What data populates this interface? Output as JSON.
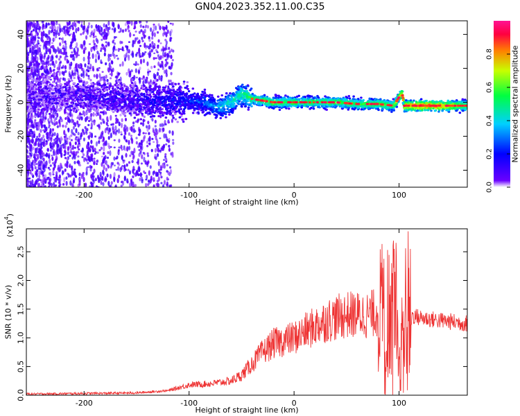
{
  "title": "GN04.2023.352.11.00.C35",
  "chart_data": [
    {
      "type": "heatmap",
      "title": "GN04.2023.352.11.00.C35",
      "xlabel": "Height of straight line (km)",
      "ylabel": "Frequency (Hz)",
      "xlim": [
        -255,
        165
      ],
      "ylim": [
        -50,
        48
      ],
      "xticks": [
        -200,
        -100,
        0,
        100
      ],
      "yticks": [
        -40,
        -20,
        0,
        20,
        40
      ],
      "colorbar": {
        "label": "Normalized spectral amplitude",
        "range": [
          0.0,
          1.0
        ],
        "ticks": [
          "0.0",
          "0.2",
          "0.4",
          "0.6",
          "0.8"
        ],
        "colors": [
          "#ffffff",
          "#6a00ff",
          "#0000ff",
          "#00d0ff",
          "#00ff40",
          "#c8ff00",
          "#ff8000",
          "#ff0040",
          "#ff1493"
        ]
      },
      "ridge": {
        "x": [
          -255,
          -200,
          -150,
          -100,
          -80,
          -70,
          -60,
          -50,
          -40,
          -30,
          -20,
          -10,
          0,
          20,
          40,
          60,
          80,
          95,
          100,
          103,
          105,
          120,
          140,
          165
        ],
        "y": [
          3,
          4,
          1,
          1,
          -1,
          -3,
          0,
          5,
          2,
          1,
          0,
          0,
          0,
          0,
          0,
          -1,
          -1,
          -2,
          3,
          5,
          -2,
          -2,
          -2,
          -2
        ],
        "amplitude": [
          0.05,
          0.08,
          0.12,
          0.2,
          0.3,
          0.4,
          0.45,
          0.5,
          0.55,
          0.6,
          0.65,
          0.6,
          0.6,
          0.6,
          0.6,
          0.6,
          0.6,
          0.6,
          0.7,
          0.8,
          0.85,
          0.9,
          0.85,
          0.6
        ]
      }
    },
    {
      "type": "line",
      "xlabel": "Height of straight line (km)",
      "ylabel": "SNR (10 * v/v)",
      "multiplier": "(x10",
      "multiplier_exp": "4",
      "multiplier_close": ")",
      "xlim": [
        -255,
        165
      ],
      "ylim": [
        0,
        2.9
      ],
      "xticks": [
        -200,
        -100,
        0,
        100
      ],
      "yticks": [
        "0.0",
        "0.5",
        "1.0",
        "1.5",
        "2.0",
        "2.5"
      ],
      "color": "#ee3333",
      "series": [
        {
          "x": [
            -255,
            -200,
            -150,
            -120,
            -100,
            -80,
            -60,
            -50,
            -40,
            -30,
            -20,
            -10,
            0,
            10,
            20,
            30,
            40,
            50,
            60,
            70,
            80,
            90,
            95,
            100,
            105,
            110,
            120,
            140,
            165
          ],
          "y": [
            0.02,
            0.03,
            0.04,
            0.08,
            0.18,
            0.2,
            0.25,
            0.35,
            0.55,
            0.75,
            0.9,
            0.95,
            1.0,
            1.1,
            1.2,
            1.3,
            1.35,
            1.4,
            1.4,
            1.4,
            1.45,
            1.5,
            1.45,
            1.35,
            1.2,
            1.4,
            1.35,
            1.3,
            1.25
          ]
        }
      ]
    }
  ]
}
